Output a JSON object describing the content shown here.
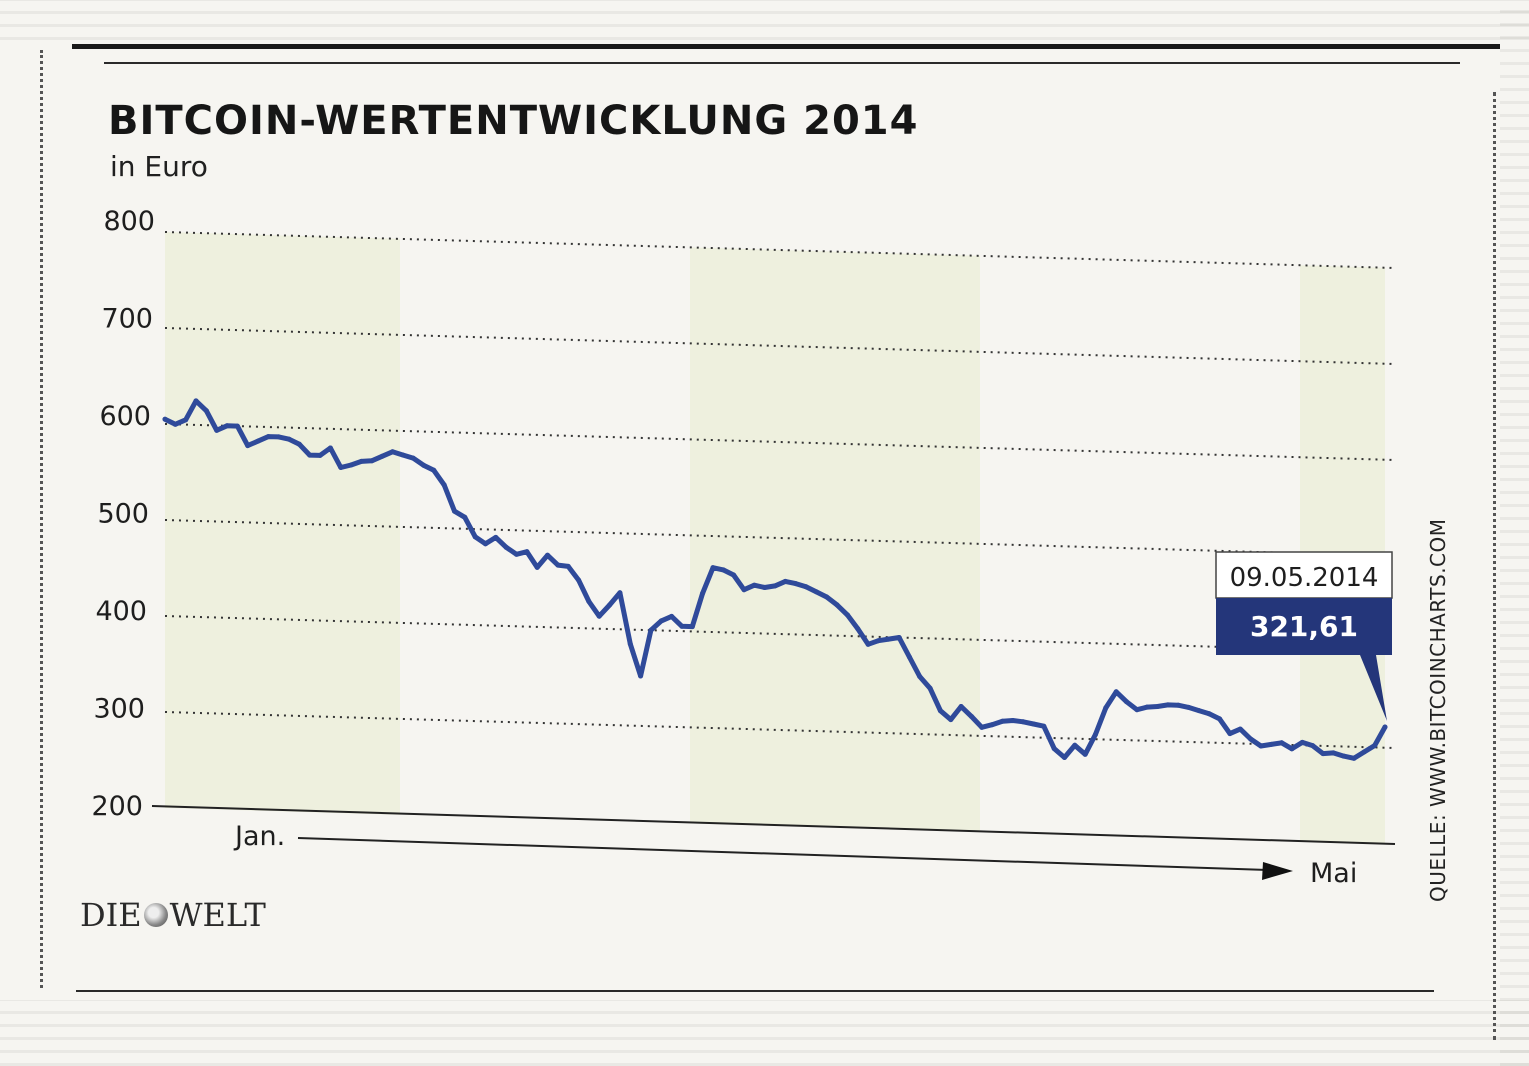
{
  "figure": {
    "title": "BITCOIN-WERTENTWICKLUNG 2014",
    "subtitle": "in Euro",
    "source": "QUELLE: WWW.BITCOINCHARTS.COM",
    "logo_text_left": "DIE",
    "logo_text_right": "WELT"
  },
  "callout": {
    "date": "09.05.2014",
    "value": "321,61"
  },
  "colors": {
    "line": "#2f4a9a",
    "callout_box": "#24367a",
    "band": "#eef0de"
  },
  "chart_data": {
    "type": "line",
    "title": "BITCOIN-WERTENTWICKLUNG 2014",
    "subtitle": "in Euro",
    "ylim": [
      200,
      800
    ],
    "yticks": [
      800,
      700,
      600,
      500,
      400,
      300,
      200
    ],
    "ytick_labels": [
      "800",
      "700",
      "600",
      "500",
      "400",
      "300",
      "200"
    ],
    "x_start_label": "Jan.",
    "x_end_label": "Mai",
    "grid": true,
    "series": [
      {
        "values": [
          605,
          600,
          605,
          625,
          615,
          595,
          600,
          600,
          580,
          585,
          590,
          590,
          588,
          583,
          572,
          572,
          580,
          560,
          563,
          567,
          568,
          573,
          578,
          575,
          572,
          565,
          560,
          545,
          518,
          512,
          492,
          485,
          492,
          482,
          475,
          478,
          462,
          475,
          465,
          464,
          450,
          428,
          413,
          425,
          438,
          385,
          352,
          400,
          410,
          415,
          405,
          405,
          440,
          467,
          465,
          460,
          445,
          450,
          448,
          450,
          455,
          453,
          450,
          445,
          440,
          432,
          422,
          408,
          392,
          396,
          398,
          400,
          380,
          360,
          348,
          325,
          316,
          330,
          320,
          309,
          312,
          316,
          317,
          316,
          314,
          312,
          289,
          280,
          293,
          284,
          305,
          333,
          350,
          340,
          332,
          335,
          336,
          338,
          338,
          336,
          333,
          330,
          325,
          310,
          315,
          305,
          298,
          300,
          302,
          296,
          303,
          300,
          292,
          293,
          290,
          288,
          295,
          302,
          321.61
        ]
      }
    ]
  }
}
